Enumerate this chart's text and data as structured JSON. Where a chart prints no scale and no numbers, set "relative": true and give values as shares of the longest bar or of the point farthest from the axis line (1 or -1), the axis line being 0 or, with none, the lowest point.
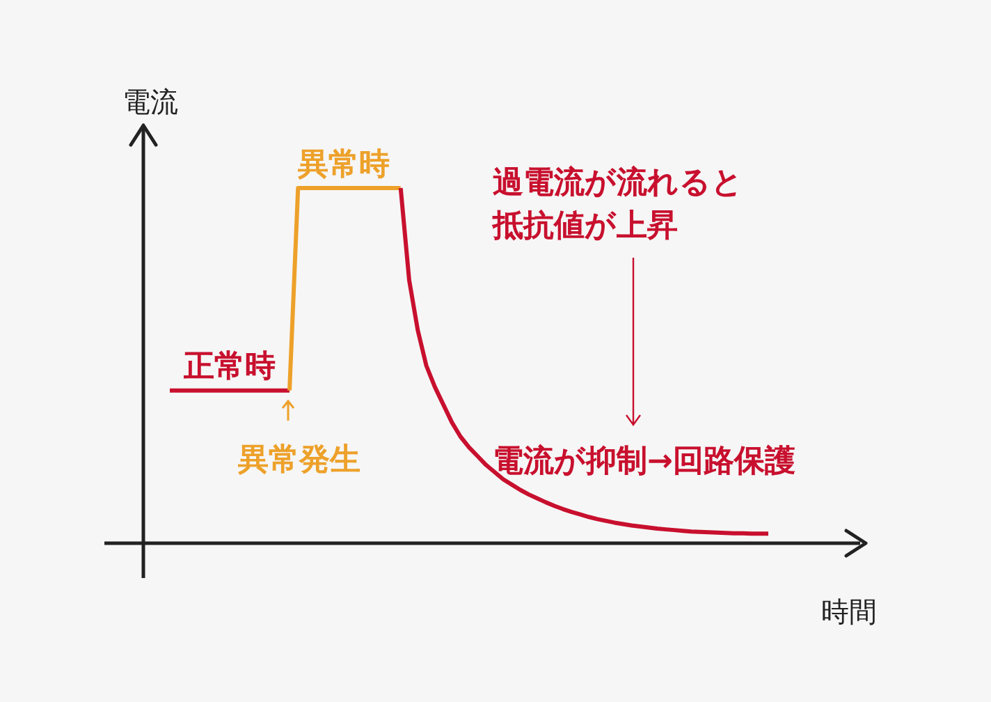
{
  "chart_data": {
    "type": "line",
    "relative": true,
    "xlabel": "時間",
    "ylabel": "電流",
    "line_style": "solid",
    "categories": [
      null,
      null,
      null,
      null,
      null,
      null,
      null,
      null,
      null,
      null,
      null,
      null,
      null,
      null,
      null,
      null,
      null,
      null,
      null,
      null,
      null,
      null,
      null,
      null,
      null,
      null,
      null,
      null,
      null,
      null,
      null,
      null,
      null,
      null,
      null,
      null,
      null,
      null,
      null,
      null,
      null,
      null,
      null,
      null,
      null,
      null,
      null,
      null,
      null,
      null,
      null,
      null,
      null,
      null,
      null,
      null,
      null,
      null,
      null,
      null,
      null,
      null,
      null,
      null,
      null,
      null,
      null,
      null,
      null,
      null,
      null
    ],
    "series": [
      {
        "color": "#c8102e",
        "values": [
          0.43,
          0.43,
          0.43,
          0.43,
          0.43,
          0.43,
          0.43,
          0.43,
          0.43,
          0.43,
          0.43,
          0.43,
          0.43,
          0.43,
          0.43,
          null,
          null,
          null,
          null,
          null,
          null,
          null,
          null,
          null,
          null,
          null,
          null,
          null,
          null,
          null,
          null,
          null,
          null,
          null,
          null,
          null,
          null,
          null,
          null,
          null,
          null,
          null,
          null,
          null,
          null,
          null,
          null,
          null,
          null,
          null,
          null,
          null,
          null,
          null,
          null,
          null,
          null,
          null,
          null,
          null,
          null,
          null,
          null,
          null,
          null,
          null,
          null,
          null,
          null,
          null,
          null
        ]
      },
      {
        "color": "#eda12a",
        "values": [
          null,
          null,
          null,
          null,
          null,
          null,
          null,
          null,
          null,
          null,
          null,
          null,
          null,
          null,
          0.43,
          1,
          1,
          1,
          1,
          1,
          1,
          1,
          1,
          1,
          1,
          1,
          1,
          1,
          null,
          null,
          null,
          null,
          null,
          null,
          null,
          null,
          null,
          null,
          null,
          null,
          null,
          null,
          null,
          null,
          null,
          null,
          null,
          null,
          null,
          null,
          null,
          null,
          null,
          null,
          null,
          null,
          null,
          null,
          null,
          null,
          null,
          null,
          null,
          null,
          null,
          null,
          null,
          null,
          null,
          null,
          null
        ]
      },
      {
        "color": "#c8102e",
        "values": [
          null,
          null,
          null,
          null,
          null,
          null,
          null,
          null,
          null,
          null,
          null,
          null,
          null,
          null,
          null,
          null,
          null,
          null,
          null,
          null,
          null,
          null,
          null,
          null,
          null,
          null,
          null,
          1,
          0.74,
          0.6,
          0.5,
          0.44,
          0.39,
          0.34,
          0.3,
          0.27,
          0.245,
          0.22,
          0.2,
          0.18,
          0.165,
          0.15,
          0.137,
          0.126,
          0.115,
          0.105,
          0.096,
          0.088,
          0.081,
          0.074,
          0.068,
          0.063,
          0.058,
          0.054,
          0.05,
          0.047,
          0.044,
          0.041,
          0.039,
          0.037,
          0.035,
          0.033,
          0.032,
          0.031,
          0.03,
          0.029,
          0.028,
          0.028,
          0.027,
          0.027,
          0.027
        ]
      }
    ],
    "annotations": [
      "異常時",
      "正常時",
      "異常発生",
      "過電流が流れると抵抗値が上昇",
      "電流が抑制→回路保護"
    ]
  }
}
